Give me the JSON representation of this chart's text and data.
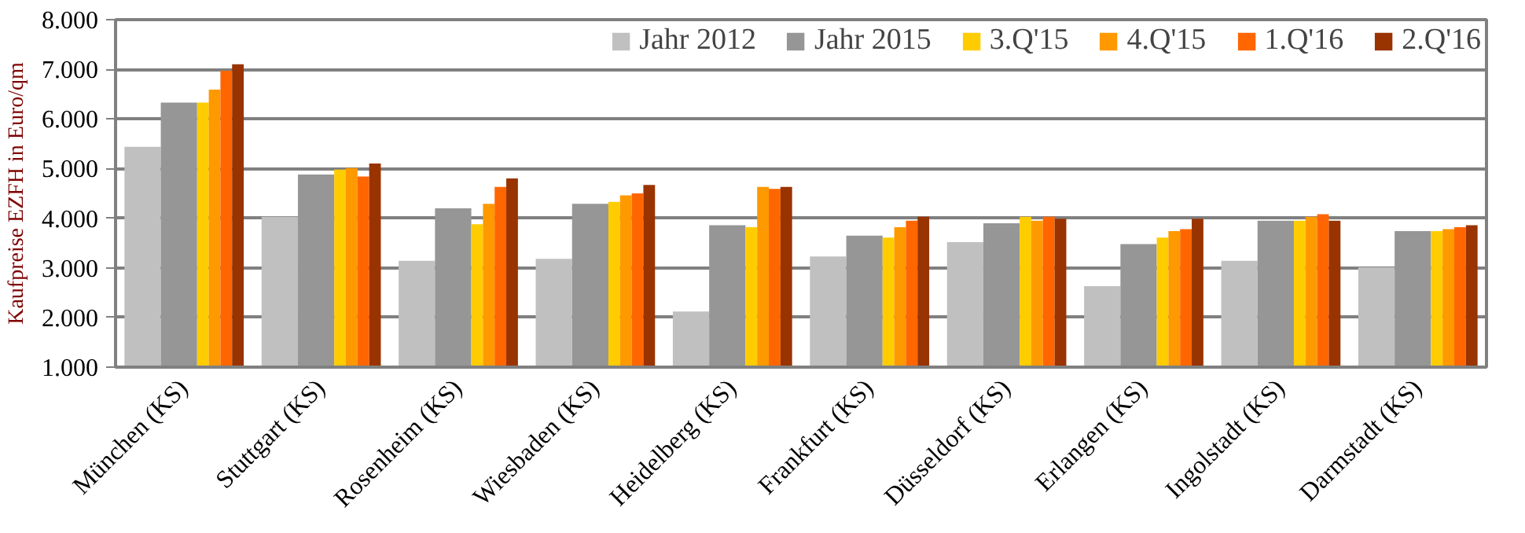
{
  "chart_data": {
    "type": "bar",
    "ylabel": "Kaufpreise EZFH in Euro/qm",
    "categories": [
      "München (KS)",
      "Stuttgart (KS)",
      "Rosenheim (KS)",
      "Wiesbaden (KS)",
      "Heidelberg (KS)",
      "Frankfurt (KS)",
      "Düsseldorf (KS)",
      "Erlangen (KS)",
      "Ingolstadt (KS)",
      "Darmstadt (KS)"
    ],
    "series": [
      {
        "name": "Jahr 2012",
        "color": "#c0c0c0",
        "values": [
          5440,
          4030,
          3140,
          3180,
          2120,
          3230,
          3520,
          2630,
          3140,
          3010
        ]
      },
      {
        "name": "Jahr 2015",
        "color": "#969696",
        "values": [
          6330,
          4880,
          4200,
          4290,
          3860,
          3650,
          3900,
          3480,
          3950,
          3740
        ]
      },
      {
        "name": "3.Q'15",
        "color": "#ffcc00",
        "values": [
          6330,
          4980,
          3880,
          4330,
          3820,
          3610,
          4030,
          3610,
          3950,
          3740
        ]
      },
      {
        "name": "4.Q'15",
        "color": "#ff9900",
        "values": [
          6590,
          5010,
          4290,
          4460,
          4630,
          3820,
          3950,
          3740,
          4030,
          3780
        ]
      },
      {
        "name": "1.Q'16",
        "color": "#ff6600",
        "values": [
          6970,
          4840,
          4630,
          4500,
          4590,
          3950,
          4030,
          3780,
          4080,
          3820
        ]
      },
      {
        "name": "2.Q'16",
        "color": "#993300",
        "values": [
          7100,
          5100,
          4800,
          4670,
          4630,
          4030,
          3990,
          3990,
          3950,
          3860
        ]
      }
    ],
    "ylim": [
      1000,
      8000
    ],
    "yticks": [
      {
        "value": 1000,
        "label": "1.000"
      },
      {
        "value": 2000,
        "label": "2.000"
      },
      {
        "value": 3000,
        "label": "3.000"
      },
      {
        "value": 4000,
        "label": "4.000"
      },
      {
        "value": 5000,
        "label": "5.000"
      },
      {
        "value": 6000,
        "label": "6.000"
      },
      {
        "value": 7000,
        "label": "7.000"
      },
      {
        "value": 8000,
        "label": "8.000"
      }
    ],
    "grid": "y",
    "legend": "top right"
  }
}
